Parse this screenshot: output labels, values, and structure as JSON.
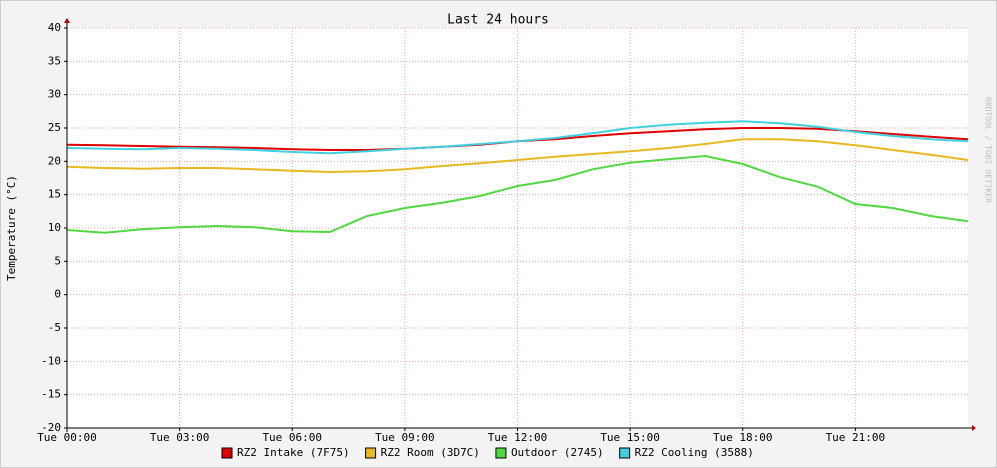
{
  "chart_data": {
    "type": "line",
    "title": "Last 24 hours",
    "y_label": "Temperature (°C)",
    "watermark": "RRDTOOL / TOBI OETIKER",
    "x": [
      0,
      1,
      2,
      3,
      4,
      5,
      6,
      7,
      8,
      9,
      10,
      11,
      12,
      13,
      14,
      15,
      16,
      17,
      18,
      19,
      20,
      21,
      22,
      23,
      24
    ],
    "xlim": [
      0,
      24
    ],
    "xticks": [
      {
        "value": 0,
        "label": "Tue 00:00"
      },
      {
        "value": 3,
        "label": "Tue 03:00"
      },
      {
        "value": 6,
        "label": "Tue 06:00"
      },
      {
        "value": 9,
        "label": "Tue 09:00"
      },
      {
        "value": 12,
        "label": "Tue 12:00"
      },
      {
        "value": 15,
        "label": "Tue 15:00"
      },
      {
        "value": 18,
        "label": "Tue 18:00"
      },
      {
        "value": 21,
        "label": "Tue 21:00"
      }
    ],
    "ylim": [
      -20,
      40
    ],
    "yticks": [
      -20,
      -15,
      -10,
      -5,
      0,
      5,
      10,
      15,
      20,
      25,
      30,
      35,
      40
    ],
    "grid": true,
    "series": [
      {
        "name": "RZ2 Intake (7F75)",
        "color": "#e00000",
        "values": [
          22.5,
          22.4,
          22.3,
          22.2,
          22.1,
          22.0,
          21.8,
          21.7,
          21.7,
          21.9,
          22.2,
          22.5,
          23.0,
          23.3,
          23.8,
          24.2,
          24.5,
          24.8,
          25.0,
          25.0,
          24.9,
          24.5,
          24.1,
          23.7,
          23.3
        ]
      },
      {
        "name": "RZ2 Room (3D7C)",
        "color": "#e8b820",
        "values": [
          19.2,
          19.0,
          18.9,
          19.0,
          19.0,
          18.8,
          18.6,
          18.4,
          18.5,
          18.8,
          19.3,
          19.7,
          20.2,
          20.7,
          21.1,
          21.5,
          22.0,
          22.6,
          23.3,
          23.3,
          23.0,
          22.4,
          21.7,
          21.0,
          20.2
        ]
      },
      {
        "name": "Outdoor (2745)",
        "color": "#50d840",
        "values": [
          9.7,
          9.3,
          9.8,
          10.1,
          10.3,
          10.1,
          9.5,
          9.4,
          11.8,
          13.0,
          13.8,
          14.8,
          16.3,
          17.2,
          18.8,
          19.8,
          20.3,
          20.8,
          19.6,
          17.6,
          16.2,
          13.6,
          13.0,
          11.8,
          11.0
        ]
      },
      {
        "name": "RZ2 Cooling (3588)",
        "color": "#40d0e0",
        "values": [
          22.0,
          21.9,
          21.8,
          22.0,
          21.9,
          21.7,
          21.4,
          21.2,
          21.5,
          21.9,
          22.2,
          22.6,
          23.0,
          23.5,
          24.2,
          25.0,
          25.5,
          25.8,
          26.0,
          25.7,
          25.2,
          24.4,
          23.8,
          23.3,
          23.0
        ]
      }
    ]
  }
}
